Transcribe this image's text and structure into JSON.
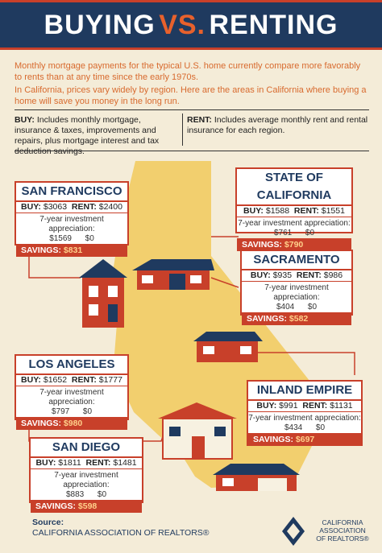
{
  "title": {
    "part1": "BUYING",
    "vs": "VS.",
    "part2": "RENTING"
  },
  "intro": {
    "p1": "Monthly mortgage payments for the typical U.S. home currently compare more favorably to rents than at any time since the early 1970s.",
    "p2": "In California, prices vary widely by region. Here are the areas in California where buying a home will save you money in the long run."
  },
  "definitions": {
    "buy_label": "BUY:",
    "buy_text": "Includes monthly mortgage, insurance & taxes, improvements and repairs, plus mortgage interest and tax deduction savings.",
    "rent_label": "RENT:",
    "rent_text": "Includes average monthly rent and rental insurance for each region."
  },
  "labels": {
    "buy": "BUY:",
    "rent": "RENT:",
    "investment": "7-year investment appreciation:",
    "savings": "SAVINGS:"
  },
  "regions": [
    {
      "name": "SAN FRANCISCO",
      "buy": "$3063",
      "rent": "$2400",
      "inv_buy": "$1569",
      "inv_rent": "$0",
      "savings": "$831"
    },
    {
      "name": "STATE OF CALIFORNIA",
      "buy": "$1588",
      "rent": "$1551",
      "inv_buy": "$761",
      "inv_rent": "$0",
      "savings": "$790"
    },
    {
      "name": "SACRAMENTO",
      "buy": "$935",
      "rent": "$986",
      "inv_buy": "$404",
      "inv_rent": "$0",
      "savings": "$582"
    },
    {
      "name": "LOS ANGELES",
      "buy": "$1652",
      "rent": "$1777",
      "inv_buy": "$797",
      "inv_rent": "$0",
      "savings": "$980"
    },
    {
      "name": "INLAND EMPIRE",
      "buy": "$991",
      "rent": "$1131",
      "inv_buy": "$434",
      "inv_rent": "$0",
      "savings": "$697"
    },
    {
      "name": "SAN DIEGO",
      "buy": "$1811",
      "rent": "$1481",
      "inv_buy": "$883",
      "inv_rent": "$0",
      "savings": "$598"
    }
  ],
  "source": {
    "label": "Source:",
    "text": "CALIFORNIA ASSOCIATION OF REALTORS®"
  },
  "logo": {
    "line1": "CALIFORNIA",
    "line2": "ASSOCIATION",
    "line3": "OF REALTORS®"
  },
  "colors": {
    "navy": "#1f3a5f",
    "red": "#c8402a",
    "orange": "#d86a2e",
    "map": "#f2cf6e",
    "background": "#f4ecd8"
  }
}
